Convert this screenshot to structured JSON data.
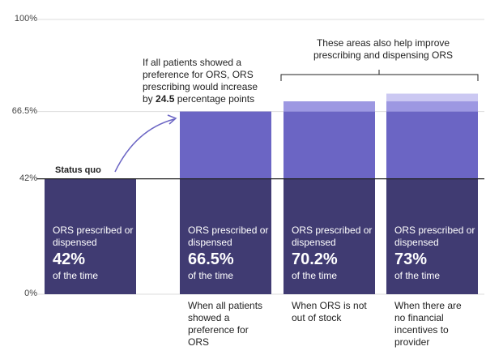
{
  "chart_data": {
    "type": "stacked-bar",
    "categories": [
      null,
      "When all patients showed a preference for ORS",
      "When ORS is not out of stock",
      "When there are no financial incentives to provider"
    ],
    "series": [
      {
        "color": "#403b72",
        "values": [
          42,
          42,
          42,
          42
        ]
      },
      {
        "color": "#6b65c4",
        "values": [
          null,
          24.5,
          24.5,
          24.5
        ]
      },
      {
        "color": "#9d98e2",
        "values": [
          null,
          null,
          3.7,
          3.7
        ]
      },
      {
        "color": "#cbc8f2",
        "values": [
          null,
          null,
          null,
          2.8
        ]
      }
    ],
    "bar_text": {
      "before": "ORS prescribed or dispensed",
      "after": "of the time"
    },
    "value_labels": [
      "42%",
      "66.5%",
      "70.2%",
      "73%"
    ],
    "ylim": [
      0,
      100
    ],
    "yticks": [
      {
        "value": 0,
        "label": "0%"
      },
      {
        "value": 42,
        "label": "42%"
      },
      {
        "value": 66.5,
        "label": "66.5%"
      },
      {
        "value": 100,
        "label": "100%"
      }
    ],
    "baseline": {
      "value": 42,
      "label": "Status quo"
    },
    "annotations": {
      "increase": [
        "If all patients showed a preference for ORS, ORS prescribing would increase by ",
        "24.5",
        " percentage points"
      ],
      "bracket": "These areas also help improve prescribing and dispensing ORS"
    }
  }
}
